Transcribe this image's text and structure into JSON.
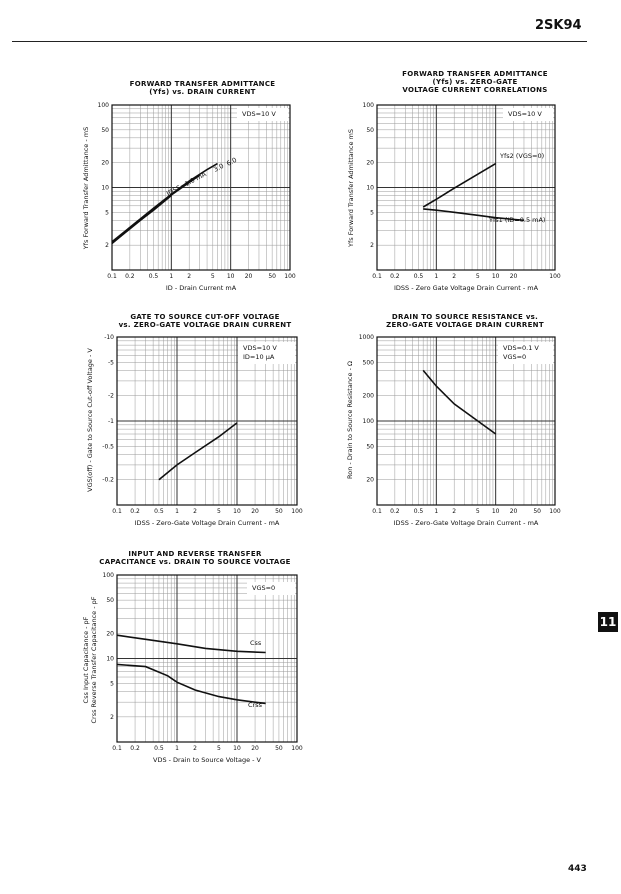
{
  "header": {
    "part_number": "2SK94",
    "section_tab": "11",
    "page_number": "443"
  },
  "chart_data": [
    {
      "type": "line",
      "title": "FORWARD TRANSFER ADMITTANCE\n(Yfs) vs. DRAIN CURRENT",
      "xlabel": "ID - Drain Current   mA",
      "ylabel": "Yfs   Forward Transfer Admittance - mS",
      "x_scale": "log",
      "y_scale": "log",
      "xlim": [
        0.1,
        100
      ],
      "ylim": [
        1,
        100
      ],
      "x_ticks": [
        0.1,
        0.2,
        0.5,
        1,
        2,
        5,
        10,
        20,
        50,
        100
      ],
      "x_tick_labels": [
        "0.1",
        "0.2",
        "0.5",
        "1",
        "2",
        "5",
        "10",
        "20",
        "50",
        "100"
      ],
      "y_ticks": [
        2,
        5,
        10,
        20,
        50,
        100
      ],
      "y_tick_labels": [
        "2",
        "5",
        "10",
        "20",
        "50",
        "100"
      ],
      "condition": "VDS=10 V",
      "annotations": [
        "IDSS=1.0 mA",
        "3.0",
        "6.0"
      ],
      "series": [
        {
          "name": "IDSS=1.0 mA",
          "x": [
            0.1,
            0.2,
            0.5,
            1.0
          ],
          "y": [
            2.1,
            3.2,
            5.3,
            8.0
          ]
        },
        {
          "name": "3.0",
          "x": [
            0.1,
            0.5,
            1,
            2,
            3.0
          ],
          "y": [
            2.1,
            5.4,
            8.1,
            11.5,
            14.0
          ]
        },
        {
          "name": "6.0",
          "x": [
            0.1,
            0.5,
            1,
            2,
            4,
            6.0
          ],
          "y": [
            2.2,
            5.6,
            8.3,
            12.0,
            16.5,
            19.5
          ]
        }
      ]
    },
    {
      "type": "line",
      "title": "FORWARD TRANSFER ADMITTANCE\n(Yfs) vs. ZERO-GATE\nVOLTAGE CURRENT CORRELATIONS",
      "xlabel": "IDSS - Zero Gate Voltage Drain Current - mA",
      "ylabel": "Yfs   Forward Transfer Admittance   mS",
      "x_scale": "log",
      "y_scale": "log",
      "xlim": [
        0.1,
        100
      ],
      "ylim": [
        1,
        100
      ],
      "x_ticks": [
        0.1,
        0.2,
        0.5,
        1,
        2,
        5,
        10,
        20,
        100
      ],
      "x_tick_labels": [
        "0.1",
        "0.2",
        "0.5",
        "1",
        "2",
        "5",
        "10",
        "20",
        "100"
      ],
      "y_ticks": [
        2,
        5,
        10,
        20,
        50,
        100
      ],
      "y_tick_labels": [
        "2",
        "5",
        "10",
        "20",
        "50",
        "100"
      ],
      "condition": "VDS=10 V",
      "annotations": [
        "Yfs2 (VGS=0)",
        "Yfs1 (ID=0.5 mA)"
      ],
      "series": [
        {
          "name": "Yfs2 (VGS=0)",
          "x": [
            0.6,
            1,
            2,
            5,
            10
          ],
          "y": [
            5.8,
            7.2,
            9.8,
            14.5,
            19.5
          ]
        },
        {
          "name": "Yfs1 (ID=0.5 mA)",
          "x": [
            0.6,
            1,
            2,
            5,
            10,
            20,
            30
          ],
          "y": [
            5.5,
            5.3,
            5.0,
            4.6,
            4.3,
            4.1,
            4.0
          ]
        }
      ]
    },
    {
      "type": "line",
      "title": "GATE TO SOURCE CUT-OFF VOLTAGE\nvs. ZERO-GATE VOLTAGE DRAIN CURRENT",
      "xlabel": "IDSS - Zero-Gate Voltage Drain Current - mA",
      "ylabel": "VGS(off) - Gate to Source Cut-off Voltage - V",
      "x_scale": "log",
      "y_scale": "log",
      "xlim": [
        0.1,
        100
      ],
      "ylim": [
        -0.1,
        -10
      ],
      "x_ticks": [
        0.1,
        0.2,
        0.5,
        1,
        2,
        5,
        10,
        20,
        50,
        100
      ],
      "x_tick_labels": [
        "0.1",
        "0.2",
        "0.5",
        "1",
        "2",
        "5",
        "10",
        "20",
        "50",
        "100"
      ],
      "y_ticks": [
        -0.2,
        -0.5,
        -1,
        -2,
        -5,
        -10
      ],
      "y_tick_labels": [
        "-0.2",
        "-0.5",
        "-1",
        "-2",
        "-5",
        "-10"
      ],
      "condition": "VDS=10 V\nID=10 μA",
      "annotations": [],
      "series": [
        {
          "name": "",
          "x": [
            0.5,
            1,
            2,
            5,
            10
          ],
          "y": [
            -0.2,
            -0.3,
            -0.42,
            -0.65,
            -0.95
          ]
        }
      ]
    },
    {
      "type": "line",
      "title": "DRAIN TO SOURCE RESISTANCE vs.\nZERO-GATE VOLTAGE DRAIN CURRENT",
      "xlabel": "IDSS - Zero-Gate Voltage Drain Current - mA",
      "ylabel": "Ron - Drain to Source Resistance - Ω",
      "x_scale": "log",
      "y_scale": "log",
      "xlim": [
        0.1,
        100
      ],
      "ylim": [
        10,
        1000
      ],
      "x_ticks": [
        0.1,
        0.2,
        0.5,
        1,
        2,
        5,
        10,
        20,
        50,
        100
      ],
      "x_tick_labels": [
        "0.1",
        "0.2",
        "0.5",
        "1",
        "2",
        "5",
        "10",
        "20",
        "50",
        "100"
      ],
      "y_ticks": [
        20,
        50,
        100,
        200,
        500,
        1000
      ],
      "y_tick_labels": [
        "20",
        "50",
        "100",
        "200",
        "500",
        "1000"
      ],
      "condition": "VDS=0.1 V\nVGS=0",
      "annotations": [],
      "series": [
        {
          "name": "",
          "x": [
            0.6,
            1,
            2,
            5,
            10
          ],
          "y": [
            400,
            260,
            160,
            100,
            70
          ]
        }
      ]
    },
    {
      "type": "line",
      "title": "INPUT AND REVERSE TRANSFER\nCAPACITANCE vs. DRAIN TO SOURCE VOLTAGE",
      "xlabel": "VDS - Drain to Source Voltage - V",
      "ylabel": "Css Input Capacitance - pF\nCrss Reverse Transfer Capacitance - pF",
      "x_scale": "log",
      "y_scale": "log",
      "xlim": [
        0.1,
        100
      ],
      "ylim": [
        1,
        100
      ],
      "x_ticks": [
        0.1,
        0.2,
        0.5,
        1,
        2,
        5,
        10,
        20,
        50,
        100
      ],
      "x_tick_labels": [
        "0.1",
        "0.2",
        "0.5",
        "1",
        "2",
        "5",
        "10",
        "20",
        "50",
        "100"
      ],
      "y_ticks": [
        2,
        5,
        10,
        20,
        50,
        100
      ],
      "y_tick_labels": [
        "2",
        "5",
        "10",
        "20",
        "50",
        "100"
      ],
      "condition": "VGS=0",
      "annotations": [
        "Css",
        "Crss"
      ],
      "series": [
        {
          "name": "Css",
          "x": [
            0.1,
            0.3,
            1,
            3,
            10,
            30
          ],
          "y": [
            19,
            17,
            15,
            13.2,
            12.2,
            11.8
          ]
        },
        {
          "name": "Crss",
          "x": [
            0.1,
            0.3,
            0.7,
            1,
            2,
            5,
            10,
            20,
            30
          ],
          "y": [
            8.5,
            8.0,
            6.2,
            5.2,
            4.2,
            3.5,
            3.2,
            3.0,
            2.9
          ]
        }
      ]
    }
  ]
}
